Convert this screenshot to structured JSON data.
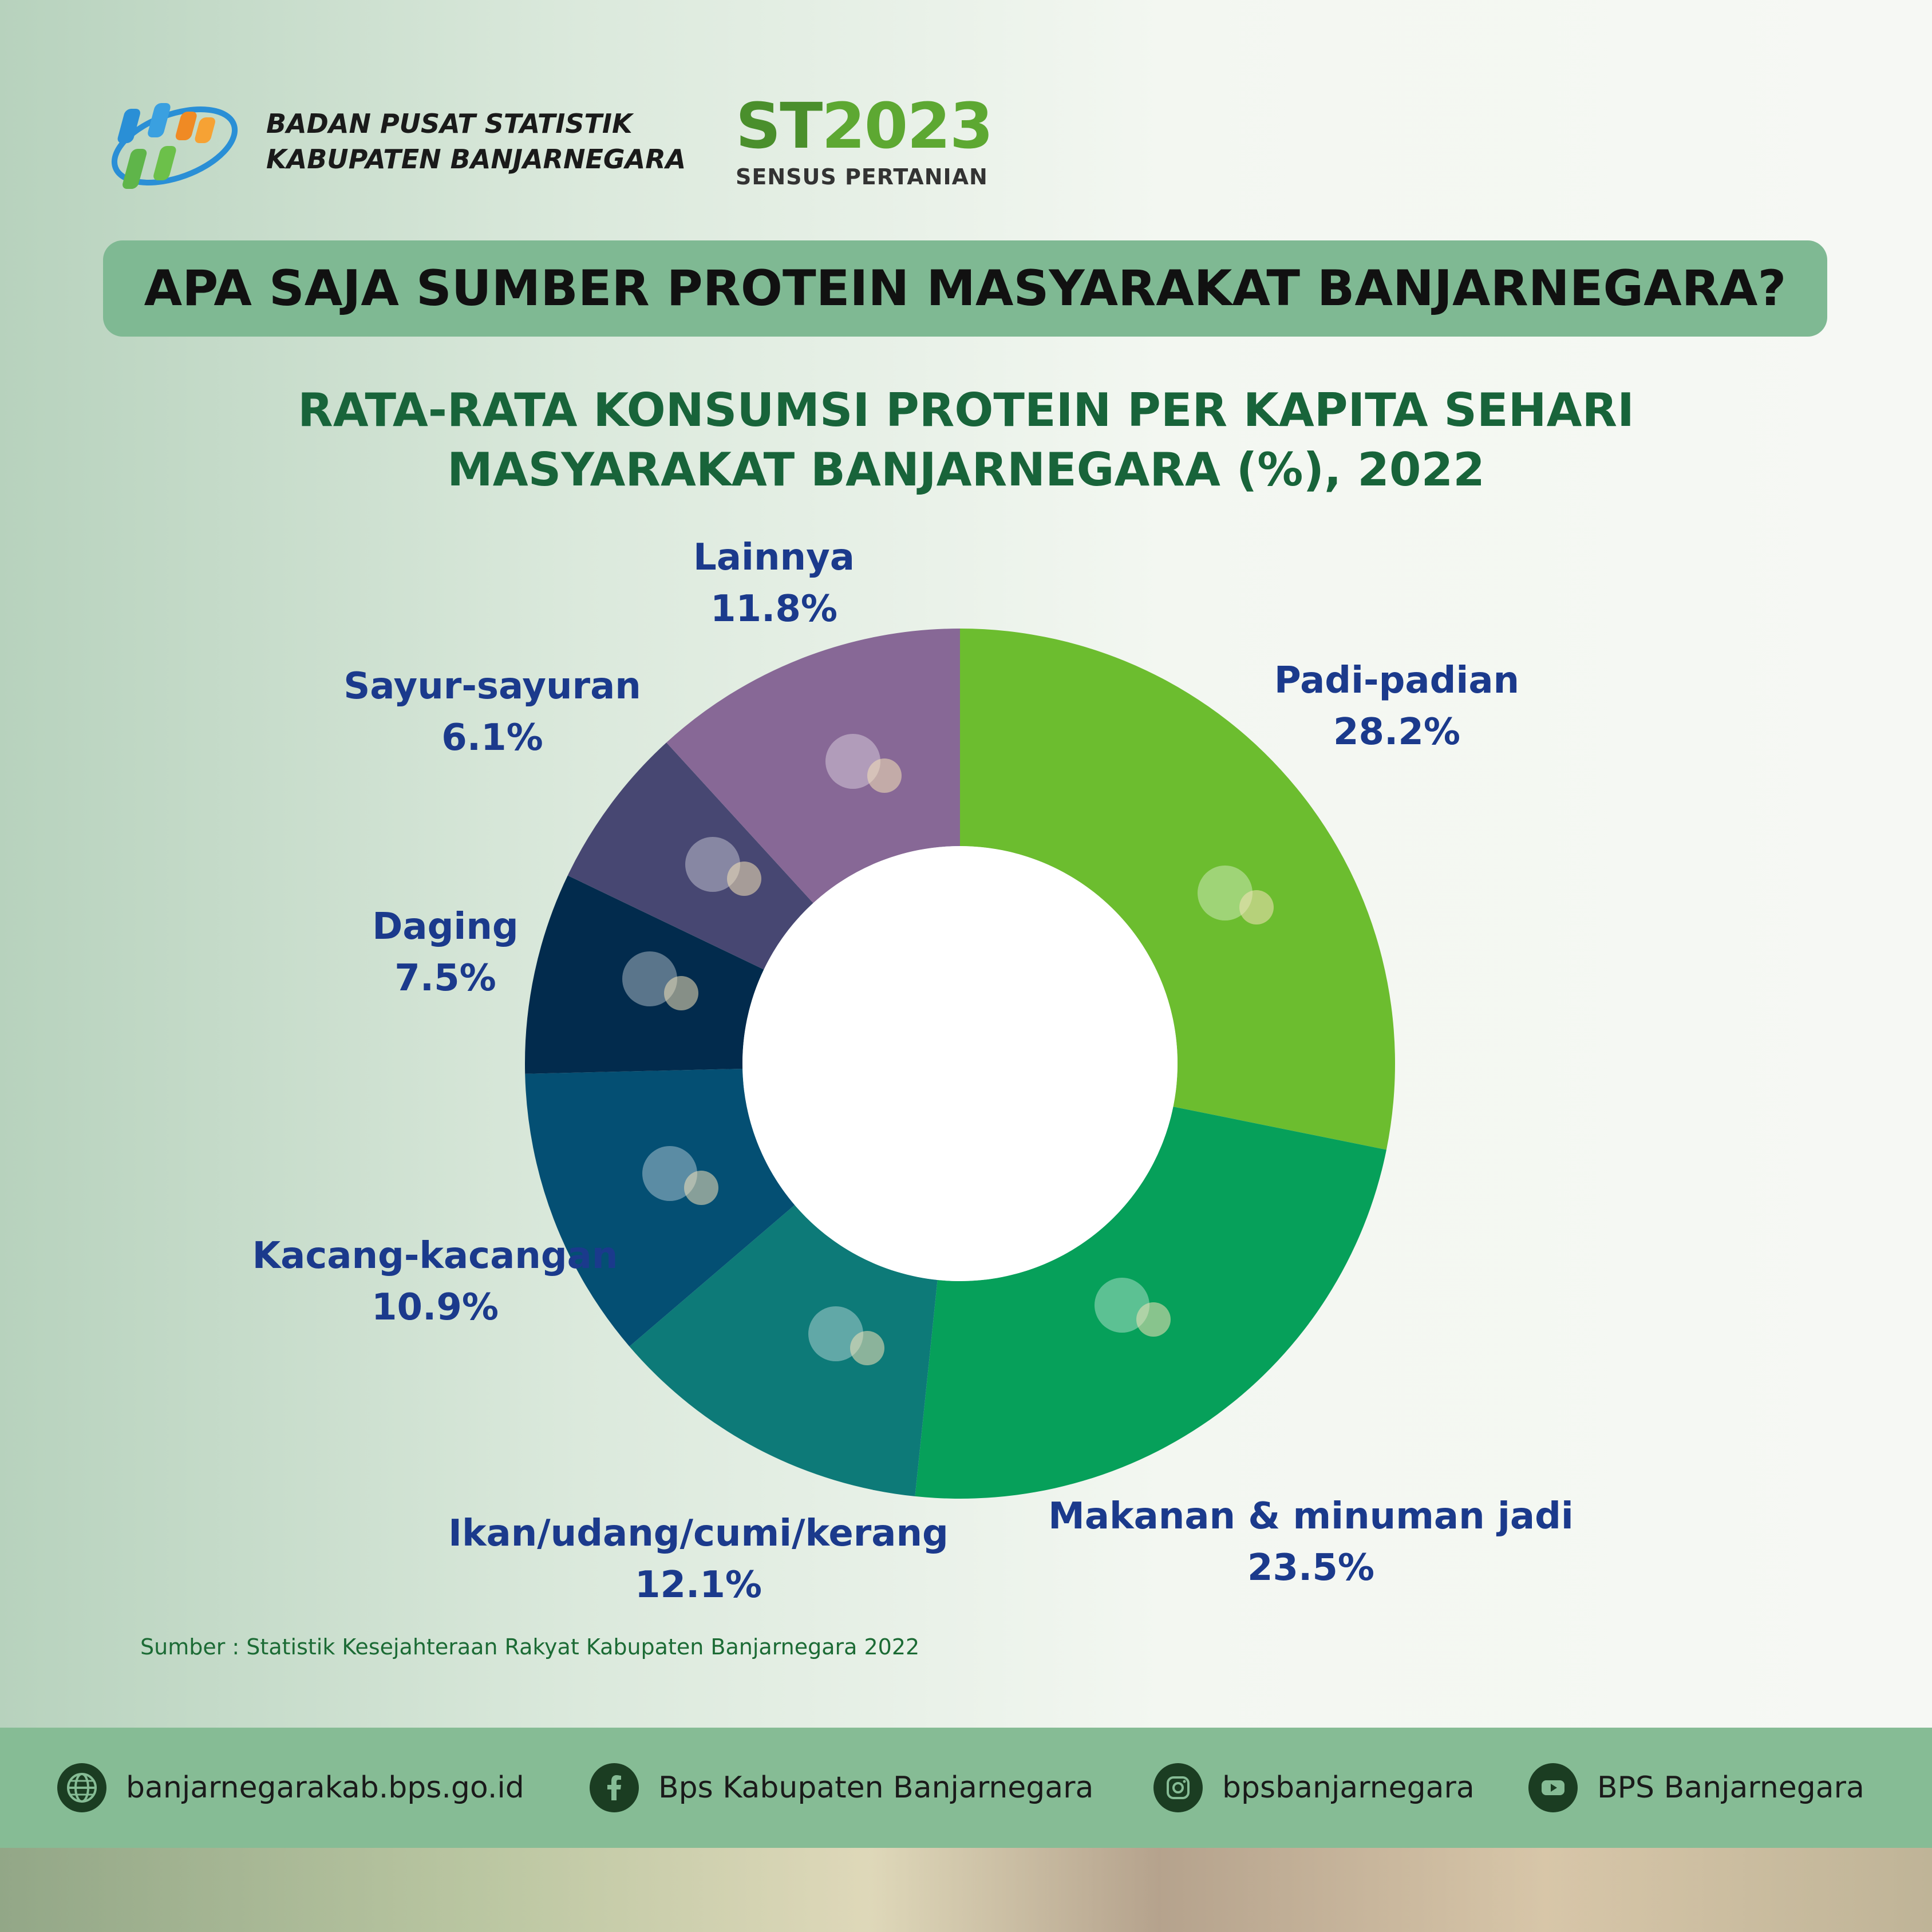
{
  "header": {
    "org_line1": "BADAN PUSAT STATISTIK",
    "org_line2": "KABUPATEN BANJARNEGARA",
    "census_mark_st": "ST",
    "census_mark_year": "2023",
    "census_name": "SENSUS PERTANIAN"
  },
  "question": "APA SAJA SUMBER PROTEIN MASYARAKAT BANJARNEGARA?",
  "chart_data": {
    "type": "pie",
    "title_line1": "RATA-RATA KONSUMSI PROTEIN PER KAPITA SEHARI",
    "title_line2": "MASYARAKAT  BANJARNEGARA (%), 2022",
    "donut": true,
    "unit": "%",
    "categories": [
      "Padi-padian",
      "Makanan & minuman jadi",
      "Ikan/udang/cumi/kerang",
      "Kacang-kacangan",
      "Daging",
      "Sayur-sayuran",
      "Lainnya"
    ],
    "values": [
      28.2,
      23.5,
      12.1,
      10.9,
      7.5,
      6.1,
      11.8
    ],
    "value_labels": [
      "28.2%",
      "23.5%",
      "12.1%",
      "10.9%",
      "7.5%",
      "6.1%",
      "11.8%"
    ],
    "colors": [
      "#6cbd2f",
      "#06a05a",
      "#0d7a78",
      "#044f73",
      "#022b4d",
      "#474772",
      "#876896"
    ],
    "icons": [
      "tofu-tempeh-soybean-icon",
      "meal-plate-juice-icon",
      "fish-shrimp-squid-shell-icon",
      "beans-icon",
      "meat-steak-icon",
      "lettuce-icon",
      "egg-coconut-apple-milk-icon"
    ]
  },
  "source": "Sumber : Statistik Kesejahteraan Rakyat Kabupaten Banjarnegara 2022",
  "footer": {
    "website": "banjarnegarakab.bps.go.id",
    "facebook": "Bps Kabupaten Banjarnegara",
    "instagram": "bpsbanjarnegara",
    "youtube": "BPS Banjarnegara"
  }
}
